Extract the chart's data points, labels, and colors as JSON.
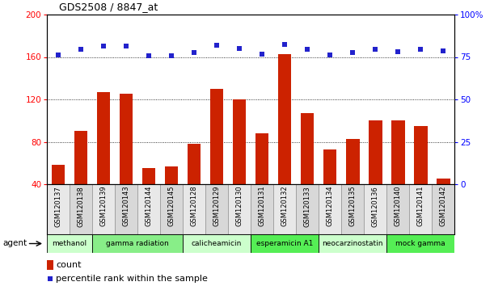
{
  "title": "GDS2508 / 8847_at",
  "samples": [
    "GSM120137",
    "GSM120138",
    "GSM120139",
    "GSM120143",
    "GSM120144",
    "GSM120145",
    "GSM120128",
    "GSM120129",
    "GSM120130",
    "GSM120131",
    "GSM120132",
    "GSM120133",
    "GSM120134",
    "GSM120135",
    "GSM120136",
    "GSM120140",
    "GSM120141",
    "GSM120142"
  ],
  "counts": [
    58,
    90,
    127,
    125,
    55,
    57,
    78,
    130,
    120,
    88,
    163,
    107,
    73,
    83,
    100,
    100,
    95,
    45
  ],
  "percentiles": [
    162,
    167,
    170,
    170,
    161,
    161,
    164,
    171,
    168,
    163,
    172,
    167,
    162,
    164,
    167,
    165,
    167,
    166
  ],
  "bar_color": "#cc2200",
  "dot_color": "#2222cc",
  "ylim_left": [
    40,
    200
  ],
  "ylim_right": [
    0,
    100
  ],
  "yticks_left": [
    40,
    80,
    120,
    160,
    200
  ],
  "yticks_right": [
    0,
    25,
    50,
    75,
    100
  ],
  "ytick_right_labels": [
    "0",
    "25",
    "50",
    "75",
    "100%"
  ],
  "gridlines": [
    80,
    120,
    160
  ],
  "groups": [
    {
      "label": "methanol",
      "start": 0,
      "end": 2,
      "color": "#ccffcc"
    },
    {
      "label": "gamma radiation",
      "start": 2,
      "end": 6,
      "color": "#88ee88"
    },
    {
      "label": "calicheamicin",
      "start": 6,
      "end": 9,
      "color": "#ccffcc"
    },
    {
      "label": "esperamicin A1",
      "start": 9,
      "end": 12,
      "color": "#55ee55"
    },
    {
      "label": "neocarzinostatin",
      "start": 12,
      "end": 15,
      "color": "#ccffcc"
    },
    {
      "label": "mock gamma",
      "start": 15,
      "end": 18,
      "color": "#55ee55"
    }
  ],
  "agent_label": "agent",
  "legend_count_label": "count",
  "legend_percentile_label": "percentile rank within the sample",
  "plot_bg": "#ffffff",
  "cell_color_odd": "#d8d8d8",
  "cell_color_even": "#e8e8e8"
}
